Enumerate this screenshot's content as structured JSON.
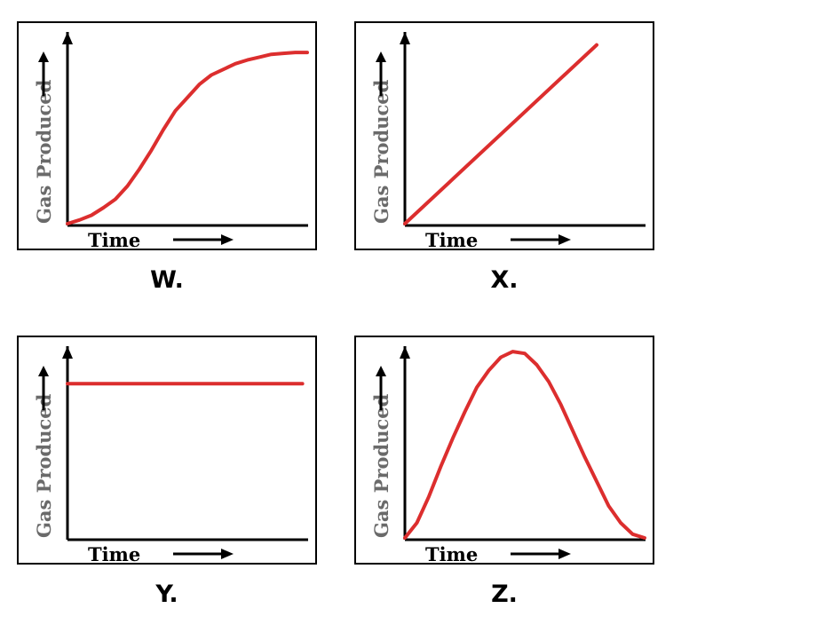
{
  "chart_data": [
    {
      "type": "line",
      "label": "W.",
      "xlabel": "Time",
      "ylabel": "Gas Produced",
      "x": [
        0,
        0.05,
        0.1,
        0.15,
        0.2,
        0.25,
        0.3,
        0.35,
        0.4,
        0.45,
        0.5,
        0.55,
        0.6,
        0.65,
        0.7,
        0.75,
        0.8,
        0.85,
        0.9,
        0.95,
        1
      ],
      "y": [
        0,
        0.02,
        0.045,
        0.085,
        0.13,
        0.2,
        0.29,
        0.39,
        0.5,
        0.6,
        0.67,
        0.74,
        0.79,
        0.82,
        0.85,
        0.87,
        0.885,
        0.9,
        0.905,
        0.91,
        0.91
      ],
      "xlim": [
        0,
        1
      ],
      "ylim": [
        0,
        1
      ],
      "grid": false
    },
    {
      "type": "line",
      "label": "X.",
      "xlabel": "Time",
      "ylabel": "Gas Produced",
      "x": [
        0,
        0.8
      ],
      "y": [
        0,
        0.95
      ],
      "xlim": [
        0,
        1
      ],
      "ylim": [
        0,
        1
      ],
      "grid": false
    },
    {
      "type": "line",
      "label": "Y.",
      "xlabel": "Time",
      "ylabel": "Gas Produced",
      "x": [
        0,
        0.98
      ],
      "y": [
        0.82,
        0.82
      ],
      "xlim": [
        0,
        1
      ],
      "ylim": [
        0,
        1
      ],
      "grid": false
    },
    {
      "type": "line",
      "label": "Z.",
      "xlabel": "Time",
      "ylabel": "Gas Produced",
      "x": [
        0,
        0.05,
        0.1,
        0.15,
        0.2,
        0.25,
        0.3,
        0.35,
        0.4,
        0.45,
        0.5,
        0.55,
        0.6,
        0.65,
        0.7,
        0.75,
        0.8,
        0.85,
        0.9,
        0.95,
        1
      ],
      "y": [
        0,
        0.08,
        0.22,
        0.38,
        0.53,
        0.67,
        0.8,
        0.89,
        0.96,
        0.99,
        0.98,
        0.92,
        0.83,
        0.71,
        0.57,
        0.43,
        0.3,
        0.17,
        0.08,
        0.02,
        0
      ],
      "xlim": [
        0,
        1
      ],
      "ylim": [
        0,
        1
      ],
      "grid": false
    }
  ]
}
